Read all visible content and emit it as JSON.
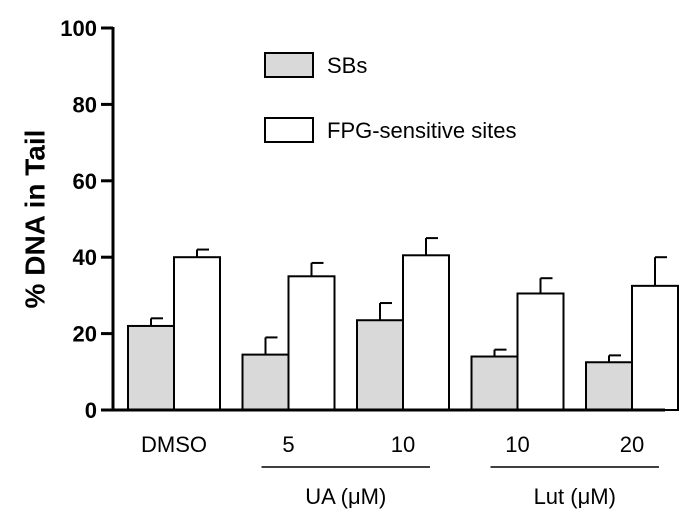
{
  "chart_data": {
    "type": "bar",
    "title": "",
    "xlabel": "",
    "ylabel": "% DNA in Tail",
    "ylim": [
      0,
      100
    ],
    "yticks": [
      "0",
      "20",
      "40",
      "60",
      "80",
      "100"
    ],
    "grid": false,
    "legend_position": "top-center",
    "categories": [
      "DMSO",
      "5",
      "10",
      "10",
      "20"
    ],
    "groups": [
      {
        "label": "UA (μM)",
        "categories": [
          1,
          2
        ]
      },
      {
        "label": "Lut (μM)",
        "categories": [
          3,
          4
        ]
      }
    ],
    "series": [
      {
        "name": "SBs",
        "color": "#d9d9d9",
        "values": [
          22,
          14.5,
          23.5,
          14,
          12.5
        ],
        "errors": [
          2,
          4.5,
          4.5,
          1.8,
          1.8
        ]
      },
      {
        "name": "FPG-sensitive sites",
        "color": "#ffffff",
        "values": [
          40,
          35,
          40.5,
          30.5,
          32.5
        ],
        "errors": [
          2,
          3.5,
          4.5,
          4,
          7.5
        ]
      }
    ]
  }
}
